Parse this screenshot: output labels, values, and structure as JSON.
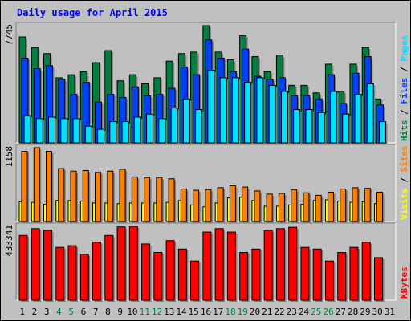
{
  "title": "Daily usage for April 2015",
  "colors": {
    "hits": "#008040",
    "files": "#0040ff",
    "pages": "#00e0ff",
    "visits": "#ffff00",
    "sites": "#ff8000",
    "kbytes": "#ff0000",
    "weekend_label": "#008040",
    "weekday_label": "#000000",
    "panel_bg": "#c0c0c0"
  },
  "chart_data": {
    "type": "bar",
    "title": "Daily usage for April 2015",
    "categories": [
      "1",
      "2",
      "3",
      "4",
      "5",
      "6",
      "7",
      "8",
      "9",
      "10",
      "11",
      "12",
      "13",
      "14",
      "15",
      "16",
      "17",
      "18",
      "19",
      "20",
      "21",
      "22",
      "23",
      "24",
      "25",
      "26",
      "27",
      "28",
      "29",
      "30",
      "31"
    ],
    "weekend_days": [
      "4",
      "5",
      "11",
      "12",
      "18",
      "19",
      "25",
      "26"
    ],
    "panels": [
      {
        "y_max_label": "7745",
        "ylim": [
          0,
          7745
        ],
        "right_label": [
          {
            "text": "Hits",
            "color": "#008040"
          },
          {
            "text": " / ",
            "color": "#000000"
          },
          {
            "text": "Files",
            "color": "#0040ff"
          },
          {
            "text": " / ",
            "color": "#000000"
          },
          {
            "text": "Pages",
            "color": "#00e0ff"
          }
        ],
        "series": [
          {
            "name": "Hits",
            "color": "#008040",
            "values": [
              7000,
              6300,
              5900,
              4300,
              4500,
              4700,
              5300,
              6100,
              4100,
              4500,
              3900,
              4300,
              5400,
              5900,
              6000,
              7745,
              6000,
              5500,
              7100,
              5700,
              4700,
              5800,
              3800,
              3800,
              3300,
              5200,
              3400,
              5200,
              6300,
              2900,
              0
            ]
          },
          {
            "name": "Files",
            "color": "#0040ff",
            "values": [
              5600,
              4900,
              5100,
              4200,
              3200,
              4000,
              2700,
              3200,
              3000,
              3700,
              3100,
              3200,
              3600,
              5000,
              4500,
              6800,
              5600,
              4700,
              6200,
              4400,
              4200,
              4300,
              3100,
              3100,
              2900,
              4500,
              2600,
              4600,
              5700,
              2500,
              0
            ]
          },
          {
            "name": "Pages",
            "color": "#00e0ff",
            "values": [
              1800,
              1600,
              1700,
              1600,
              1600,
              1100,
              900,
              1400,
              1400,
              1700,
              1900,
              1600,
              2300,
              2900,
              2200,
              4800,
              4300,
              4300,
              4000,
              4300,
              3800,
              3400,
              2200,
              2200,
              2000,
              3400,
              1900,
              3200,
              3900,
              1400,
              0
            ]
          }
        ]
      },
      {
        "y_max_label": "1158",
        "ylim": [
          0,
          1158
        ],
        "right_label": [
          {
            "text": "Visits",
            "color": "#ffff00"
          },
          {
            "text": " / ",
            "color": "#000000"
          },
          {
            "text": "Sites",
            "color": "#ff8000"
          }
        ],
        "series": [
          {
            "name": "Sites",
            "color": "#ff8000",
            "values": [
              1100,
              1158,
              1100,
              830,
              790,
              800,
              770,
              790,
              820,
              700,
              690,
              690,
              670,
              510,
              490,
              500,
              530,
              560,
              540,
              480,
              430,
              440,
              500,
              450,
              410,
              460,
              510,
              530,
              520,
              460,
              0
            ]
          },
          {
            "name": "Visits",
            "color": "#ffff00",
            "values": [
              310,
              300,
              270,
              330,
              330,
              320,
              290,
              290,
              280,
              290,
              290,
              290,
              300,
              330,
              260,
              230,
              290,
              370,
              380,
              330,
              240,
              240,
              260,
              270,
              330,
              340,
              320,
              300,
              310,
              280,
              0
            ]
          }
        ]
      },
      {
        "y_max_label": "433341",
        "ylim": [
          0,
          433341
        ],
        "right_label": [
          {
            "text": "KBytes",
            "color": "#ff0000"
          }
        ],
        "series": [
          {
            "name": "KBytes",
            "color": "#ff0000",
            "values": [
              380000,
              420000,
              410000,
              310000,
              320000,
              270000,
              340000,
              380000,
              430000,
              433341,
              330000,
              280000,
              350000,
              300000,
              230000,
              400000,
              420000,
              400000,
              280000,
              300000,
              410000,
              420000,
              428000,
              310000,
              300000,
              230000,
              280000,
              310000,
              340000,
              250000,
              0
            ]
          }
        ]
      }
    ]
  }
}
